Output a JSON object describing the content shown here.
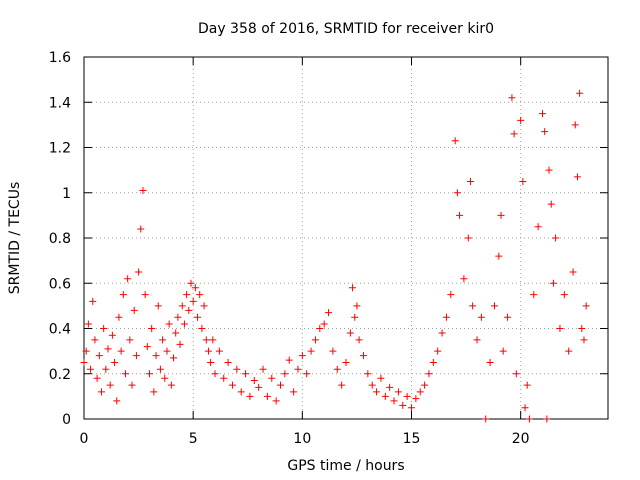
{
  "chart_data": {
    "type": "scatter",
    "title": "Day 358 of 2016, SRMTID for receiver kir0",
    "xlabel": "GPS time / hours",
    "ylabel": "SRMTID / TECUs",
    "xlim": [
      0,
      24
    ],
    "ylim": [
      0,
      1.6
    ],
    "xticks": [
      0,
      5,
      10,
      15,
      20
    ],
    "xtick_labels": [
      "0",
      "5",
      "10",
      "15",
      "20"
    ],
    "yticks": [
      0,
      0.2,
      0.4,
      0.6,
      0.8,
      1,
      1.2,
      1.4,
      1.6
    ],
    "ytick_labels": [
      "0",
      "0.2",
      "0.4",
      "0.6",
      "0.8",
      "1",
      "1.2",
      "1.4",
      "1.6"
    ],
    "grid": true,
    "marker": "+",
    "series": [
      {
        "name": "SRMTID",
        "color": "#ff0000",
        "points": [
          [
            0.0,
            0.25
          ],
          [
            0.1,
            0.3
          ],
          [
            0.2,
            0.42
          ],
          [
            0.3,
            0.22
          ],
          [
            0.4,
            0.52
          ],
          [
            0.5,
            0.35
          ],
          [
            0.6,
            0.18
          ],
          [
            0.7,
            0.28
          ],
          [
            0.8,
            0.12
          ],
          [
            0.9,
            0.4
          ],
          [
            1.0,
            0.22
          ],
          [
            1.1,
            0.31
          ],
          [
            1.2,
            0.15
          ],
          [
            1.3,
            0.37
          ],
          [
            1.4,
            0.25
          ],
          [
            1.5,
            0.08
          ],
          [
            1.6,
            0.45
          ],
          [
            1.7,
            0.3
          ],
          [
            1.8,
            0.55
          ],
          [
            1.9,
            0.2
          ],
          [
            2.0,
            0.62
          ],
          [
            2.1,
            0.35
          ],
          [
            2.2,
            0.15
          ],
          [
            2.3,
            0.48
          ],
          [
            2.4,
            0.28
          ],
          [
            2.5,
            0.65
          ],
          [
            2.6,
            0.84
          ],
          [
            2.7,
            1.01
          ],
          [
            2.8,
            0.55
          ],
          [
            2.9,
            0.32
          ],
          [
            3.0,
            0.2
          ],
          [
            3.1,
            0.4
          ],
          [
            3.2,
            0.12
          ],
          [
            3.3,
            0.28
          ],
          [
            3.4,
            0.5
          ],
          [
            3.5,
            0.22
          ],
          [
            3.6,
            0.35
          ],
          [
            3.7,
            0.18
          ],
          [
            3.8,
            0.3
          ],
          [
            3.9,
            0.42
          ],
          [
            4.0,
            0.15
          ],
          [
            4.1,
            0.27
          ],
          [
            4.2,
            0.38
          ],
          [
            4.3,
            0.45
          ],
          [
            4.4,
            0.33
          ],
          [
            4.5,
            0.5
          ],
          [
            4.6,
            0.42
          ],
          [
            4.7,
            0.55
          ],
          [
            4.8,
            0.48
          ],
          [
            4.9,
            0.6
          ],
          [
            5.0,
            0.52
          ],
          [
            5.1,
            0.58
          ],
          [
            5.2,
            0.45
          ],
          [
            5.3,
            0.55
          ],
          [
            5.4,
            0.4
          ],
          [
            5.5,
            0.5
          ],
          [
            5.6,
            0.35
          ],
          [
            5.7,
            0.3
          ],
          [
            5.8,
            0.25
          ],
          [
            5.9,
            0.35
          ],
          [
            6.0,
            0.2
          ],
          [
            6.2,
            0.3
          ],
          [
            6.4,
            0.18
          ],
          [
            6.6,
            0.25
          ],
          [
            6.8,
            0.15
          ],
          [
            7.0,
            0.22
          ],
          [
            7.2,
            0.12
          ],
          [
            7.4,
            0.2
          ],
          [
            7.6,
            0.1
          ],
          [
            7.8,
            0.17
          ],
          [
            8.0,
            0.14
          ],
          [
            8.2,
            0.22
          ],
          [
            8.4,
            0.1
          ],
          [
            8.6,
            0.18
          ],
          [
            8.8,
            0.08
          ],
          [
            9.0,
            0.15
          ],
          [
            9.2,
            0.2
          ],
          [
            9.4,
            0.26
          ],
          [
            9.6,
            0.12
          ],
          [
            9.8,
            0.22
          ],
          [
            10.0,
            0.28
          ],
          [
            10.2,
            0.2
          ],
          [
            10.4,
            0.3
          ],
          [
            10.6,
            0.35
          ],
          [
            10.8,
            0.4
          ],
          [
            11.0,
            0.42
          ],
          [
            11.2,
            0.47
          ],
          [
            11.4,
            0.3
          ],
          [
            11.6,
            0.22
          ],
          [
            11.8,
            0.15
          ],
          [
            12.0,
            0.25
          ],
          [
            12.2,
            0.38
          ],
          [
            12.3,
            0.58
          ],
          [
            12.4,
            0.45
          ],
          [
            12.5,
            0.5
          ],
          [
            12.6,
            0.35
          ],
          [
            12.8,
            0.28
          ],
          [
            13.0,
            0.2
          ],
          [
            13.2,
            0.15
          ],
          [
            13.4,
            0.12
          ],
          [
            13.6,
            0.18
          ],
          [
            13.8,
            0.1
          ],
          [
            14.0,
            0.14
          ],
          [
            14.2,
            0.08
          ],
          [
            14.4,
            0.12
          ],
          [
            14.6,
            0.06
          ],
          [
            14.8,
            0.1
          ],
          [
            15.0,
            0.05
          ],
          [
            15.2,
            0.09
          ],
          [
            15.4,
            0.12
          ],
          [
            15.6,
            0.15
          ],
          [
            15.8,
            0.2
          ],
          [
            16.0,
            0.25
          ],
          [
            16.2,
            0.3
          ],
          [
            16.4,
            0.38
          ],
          [
            16.6,
            0.45
          ],
          [
            16.8,
            0.55
          ],
          [
            17.0,
            1.23
          ],
          [
            17.1,
            1.0
          ],
          [
            17.2,
            0.9
          ],
          [
            17.4,
            0.62
          ],
          [
            17.6,
            0.8
          ],
          [
            17.7,
            1.05
          ],
          [
            17.8,
            0.5
          ],
          [
            18.0,
            0.35
          ],
          [
            18.2,
            0.45
          ],
          [
            18.4,
            0.0
          ],
          [
            18.6,
            0.25
          ],
          [
            18.8,
            0.5
          ],
          [
            19.0,
            0.72
          ],
          [
            19.1,
            0.9
          ],
          [
            19.2,
            0.3
          ],
          [
            19.4,
            0.45
          ],
          [
            19.6,
            1.42
          ],
          [
            19.7,
            1.26
          ],
          [
            19.8,
            0.2
          ],
          [
            20.0,
            1.32
          ],
          [
            20.1,
            1.05
          ],
          [
            20.2,
            0.05
          ],
          [
            20.3,
            0.15
          ],
          [
            20.4,
            0.0
          ],
          [
            20.6,
            0.55
          ],
          [
            20.8,
            0.85
          ],
          [
            21.0,
            1.35
          ],
          [
            21.1,
            1.27
          ],
          [
            21.2,
            0.0
          ],
          [
            21.3,
            1.1
          ],
          [
            21.4,
            0.95
          ],
          [
            21.5,
            0.6
          ],
          [
            21.6,
            0.8
          ],
          [
            21.8,
            0.4
          ],
          [
            22.0,
            0.55
          ],
          [
            22.2,
            0.3
          ],
          [
            22.4,
            0.65
          ],
          [
            22.5,
            1.3
          ],
          [
            22.6,
            1.07
          ],
          [
            22.7,
            1.44
          ],
          [
            22.8,
            0.4
          ],
          [
            22.9,
            0.35
          ],
          [
            23.0,
            0.5
          ]
        ]
      }
    ]
  }
}
